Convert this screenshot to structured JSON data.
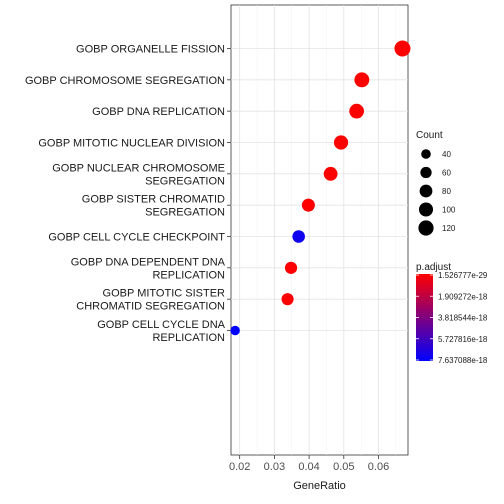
{
  "chart_data": {
    "type": "scatter",
    "xlabel": "GeneRatio",
    "ylabel": "",
    "xlim": [
      0.0175,
      0.0685
    ],
    "xticks": [
      0.02,
      0.03,
      0.04,
      0.05,
      0.06
    ],
    "xtick_labels": [
      "0.02",
      "0.03",
      "0.04",
      "0.05",
      "0.06"
    ],
    "grid": true,
    "categories": [
      [
        "GOBP ORGANELLE FISSION"
      ],
      [
        "GOBP CHROMOSOME SEGREGATION"
      ],
      [
        "GOBP DNA REPLICATION"
      ],
      [
        "GOBP MITOTIC NUCLEAR DIVISION"
      ],
      [
        "GOBP NUCLEAR CHROMOSOME",
        "SEGREGATION"
      ],
      [
        "GOBP SISTER CHROMATID",
        "SEGREGATION"
      ],
      [
        "GOBP CELL CYCLE CHECKPOINT"
      ],
      [
        "GOBP DNA DEPENDENT DNA",
        "REPLICATION"
      ],
      [
        "GOBP MITOTIC SISTER",
        "CHROMATID SEGREGATION"
      ],
      [
        "GOBP CELL CYCLE DNA",
        "REPLICATION"
      ]
    ],
    "points": [
      {
        "x": 0.0669,
        "count": 135,
        "p_adjust": 2e-29
      },
      {
        "x": 0.0552,
        "count": 114,
        "p_adjust": 1e-25
      },
      {
        "x": 0.0537,
        "count": 112,
        "p_adjust": 1e-22
      },
      {
        "x": 0.0492,
        "count": 103,
        "p_adjust": 1e-20
      },
      {
        "x": 0.0462,
        "count": 96,
        "p_adjust": 1e-21
      },
      {
        "x": 0.0398,
        "count": 84,
        "p_adjust": 1e-20
      },
      {
        "x": 0.037,
        "count": 77,
        "p_adjust": 7.2e-18
      },
      {
        "x": 0.0348,
        "count": 72,
        "p_adjust": 1e-19
      },
      {
        "x": 0.0338,
        "count": 70,
        "p_adjust": 1e-19
      },
      {
        "x": 0.0187,
        "count": 38,
        "p_adjust": 7.637088e-18
      }
    ],
    "size_legend": {
      "title": "Count",
      "values": [
        40,
        60,
        80,
        100,
        120
      ],
      "labels": [
        "40",
        "60",
        "80",
        "100",
        "120"
      ]
    },
    "color_legend": {
      "title": "p.adjust",
      "low_color": "#ff0000",
      "high_color": "#0000ff",
      "min": 1.526777e-29,
      "max": 7.637088e-18,
      "labels": [
        "1.526777e-29",
        "1.909272e-18",
        "3.818544e-18",
        "5.727816e-18",
        "7.637088e-18"
      ]
    },
    "legend_position": "right"
  }
}
